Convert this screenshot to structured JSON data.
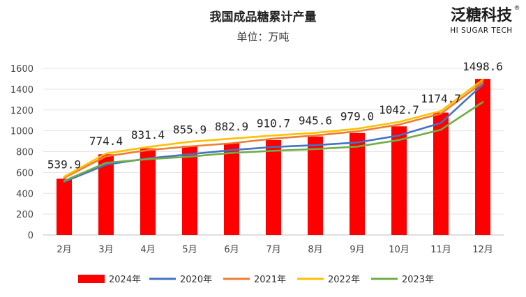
{
  "brand": {
    "name_cn": "泛糖科技",
    "name_en": "HI SUGAR TECH",
    "registered_mark": "®"
  },
  "chart_data": {
    "type": "bar",
    "title": "我国成品糖累计产量",
    "subtitle": "单位：万吨",
    "categories": [
      "2月",
      "3月",
      "4月",
      "5月",
      "6月",
      "7月",
      "8月",
      "9月",
      "10月",
      "11月",
      "12月"
    ],
    "ylim": [
      0,
      1600
    ],
    "yticks": [
      0,
      200,
      400,
      600,
      800,
      1000,
      1200,
      1400,
      1600
    ],
    "grid": true,
    "legend_position": "bottom",
    "bar_series": {
      "name": "2024年",
      "color": "#ff0000",
      "values": [
        539.9,
        774.4,
        831.4,
        855.9,
        882.9,
        910.7,
        945.6,
        979.0,
        1042.7,
        1174.7,
        1498.6
      ],
      "labels": [
        "539.9",
        "774.4",
        "831.4",
        "855.9",
        "882.9",
        "910.7",
        "945.6",
        "979.0",
        "1042.7",
        "1174.7",
        "1498.6"
      ]
    },
    "line_series": [
      {
        "name": "2020年",
        "color": "#4472c4",
        "values": [
          510,
          675,
          735,
          775,
          815,
          845,
          862,
          888,
          955,
          1075,
          1445
        ]
      },
      {
        "name": "2021年",
        "color": "#ed7d31",
        "values": [
          548,
          755,
          815,
          850,
          880,
          925,
          955,
          995,
          1060,
          1165,
          1465
        ]
      },
      {
        "name": "2022年",
        "color": "#ffc000",
        "values": [
          560,
          782,
          845,
          895,
          925,
          955,
          980,
          1020,
          1085,
          1190,
          1490
        ]
      },
      {
        "name": "2023年",
        "color": "#70ad47",
        "values": [
          520,
          692,
          728,
          752,
          788,
          808,
          825,
          848,
          912,
          1010,
          1275
        ]
      }
    ]
  }
}
